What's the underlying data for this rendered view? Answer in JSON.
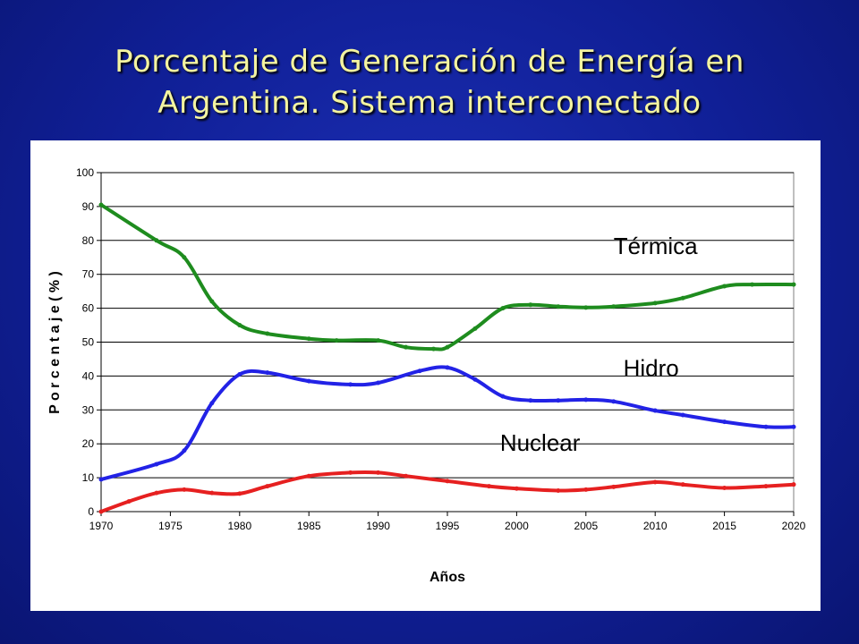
{
  "slide": {
    "title_line1": "Porcentaje de Generación de Energía en",
    "title_line2": "Argentina. Sistema interconectado"
  },
  "chart_data": {
    "type": "line",
    "title": "",
    "xlabel": "Años",
    "ylabel": "P o r c e n t a j e  ( % )",
    "xlim": [
      1970,
      2020
    ],
    "ylim": [
      0,
      100
    ],
    "x_ticks": [
      "1970",
      "1975",
      "1980",
      "1985",
      "1990",
      "1995",
      "2000",
      "2005",
      "2010",
      "2015",
      "2020"
    ],
    "y_ticks": [
      "0",
      "10",
      "20",
      "30",
      "40",
      "50",
      "60",
      "70",
      "80",
      "90",
      "100"
    ],
    "grid": true,
    "series": [
      {
        "name": "Térmica",
        "color": "#1e8c1e",
        "x": [
          1970,
          1974,
          1976,
          1978,
          1980,
          1982,
          1985,
          1987,
          1990,
          1992,
          1994,
          1995,
          1997,
          1999,
          2001,
          2003,
          2005,
          2007,
          2010,
          2012,
          2015,
          2017,
          2020
        ],
        "y": [
          90.5,
          80,
          75,
          62,
          55,
          52.5,
          51,
          50.5,
          50.5,
          48.5,
          48,
          48.5,
          54,
          60,
          61,
          60.5,
          60.2,
          60.5,
          61.5,
          63,
          66.5,
          67,
          67
        ]
      },
      {
        "name": "Hidro",
        "color": "#2222e6",
        "x": [
          1970,
          1974,
          1976,
          1978,
          1980,
          1982,
          1985,
          1988,
          1990,
          1993,
          1995,
          1997,
          1999,
          2001,
          2003,
          2005,
          2007,
          2010,
          2012,
          2015,
          2018,
          2020
        ],
        "y": [
          9.5,
          14,
          18,
          32,
          40.5,
          41,
          38.5,
          37.5,
          38,
          41.5,
          42.5,
          39,
          34,
          32.8,
          32.8,
          33,
          32.5,
          29.8,
          28.5,
          26.5,
          25,
          25
        ]
      },
      {
        "name": "Nuclear",
        "color": "#e62020",
        "x": [
          1970,
          1972,
          1974,
          1976,
          1978,
          1980,
          1982,
          1985,
          1988,
          1990,
          1992,
          1995,
          1998,
          2000,
          2003,
          2005,
          2007,
          2010,
          2012,
          2015,
          2018,
          2020
        ],
        "y": [
          0,
          3,
          5.5,
          6.5,
          5.5,
          5.3,
          7.5,
          10.5,
          11.5,
          11.5,
          10.5,
          9,
          7.5,
          6.8,
          6.2,
          6.5,
          7.3,
          8.7,
          8,
          7,
          7.5,
          8
        ]
      }
    ],
    "annotations": [
      {
        "text": "Térmica",
        "series": "Térmica",
        "x": 2007,
        "y": 76
      },
      {
        "text": "Hidro",
        "series": "Hidro",
        "x": 2007.7,
        "y": 40
      },
      {
        "text": "Nuclear",
        "series": "Nuclear",
        "x": 1998.8,
        "y": 18
      }
    ]
  }
}
